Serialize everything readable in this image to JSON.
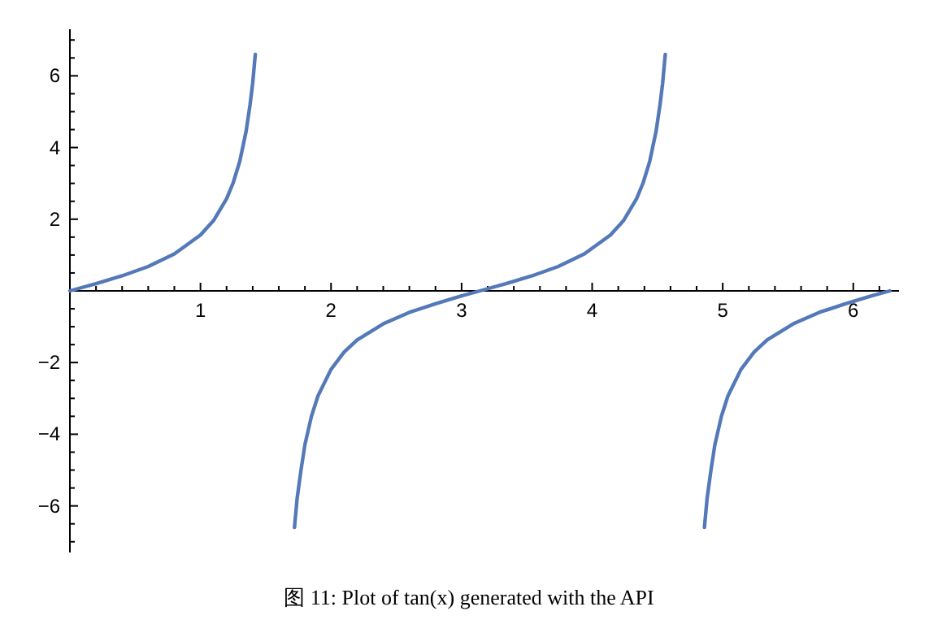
{
  "chart_data": {
    "type": "line",
    "annotations": [
      "图 11: Plot of tan(x) generated with the API"
    ],
    "series": [
      {
        "color": "#5479b8",
        "x": [
          0,
          0.2,
          0.4,
          0.6,
          0.8,
          1.0,
          1.1,
          1.2,
          1.25,
          1.3,
          1.35,
          1.38,
          1.4,
          1.42
        ],
        "values": [
          0,
          0.2,
          0.42,
          0.68,
          1.03,
          1.56,
          1.96,
          2.57,
          3.01,
          3.6,
          4.46,
          5.2,
          5.8,
          6.6
        ]
      },
      {
        "color": "#5479b8",
        "x": [
          1.72,
          1.74,
          1.77,
          1.8,
          1.85,
          1.9,
          2.0,
          2.1,
          2.2,
          2.4,
          2.6,
          2.8,
          3.0,
          3.14,
          3.34,
          3.54,
          3.74,
          3.94,
          4.14,
          4.24,
          4.34,
          4.39,
          4.44,
          4.49,
          4.52,
          4.54,
          4.56
        ],
        "values": [
          -6.6,
          -5.8,
          -5.0,
          -4.29,
          -3.5,
          -2.93,
          -2.19,
          -1.71,
          -1.37,
          -0.92,
          -0.6,
          -0.36,
          -0.14,
          0,
          0.2,
          0.42,
          0.68,
          1.03,
          1.56,
          1.96,
          2.57,
          3.01,
          3.6,
          4.46,
          5.2,
          5.8,
          6.6
        ]
      },
      {
        "color": "#5479b8",
        "x": [
          4.86,
          4.88,
          4.91,
          4.94,
          4.99,
          5.04,
          5.14,
          5.24,
          5.34,
          5.54,
          5.74,
          5.94,
          6.14,
          6.28
        ],
        "values": [
          -6.6,
          -5.8,
          -5.0,
          -4.29,
          -3.5,
          -2.93,
          -2.19,
          -1.71,
          -1.37,
          -0.92,
          -0.6,
          -0.36,
          -0.14,
          0
        ]
      }
    ],
    "xlim": [
      0,
      6.35
    ],
    "ylim": [
      -7.3,
      7.3
    ],
    "xticks": [
      {
        "value": 0.2,
        "label": null
      },
      {
        "value": 0.4,
        "label": null
      },
      {
        "value": 0.6,
        "label": null
      },
      {
        "value": 0.8,
        "label": null
      },
      1,
      {
        "value": 1.2,
        "label": null
      },
      {
        "value": 1.4,
        "label": null
      },
      {
        "value": 1.6,
        "label": null
      },
      {
        "value": 1.8,
        "label": null
      },
      2,
      {
        "value": 2.2,
        "label": null
      },
      {
        "value": 2.4,
        "label": null
      },
      {
        "value": 2.6,
        "label": null
      },
      {
        "value": 2.8,
        "label": null
      },
      3,
      {
        "value": 3.2,
        "label": null
      },
      {
        "value": 3.4,
        "label": null
      },
      {
        "value": 3.6,
        "label": null
      },
      {
        "value": 3.8,
        "label": null
      },
      4,
      {
        "value": 4.2,
        "label": null
      },
      {
        "value": 4.4,
        "label": null
      },
      {
        "value": 4.6,
        "label": null
      },
      {
        "value": 4.8,
        "label": null
      },
      5,
      {
        "value": 5.2,
        "label": null
      },
      {
        "value": 5.4,
        "label": null
      },
      {
        "value": 5.6,
        "label": null
      },
      {
        "value": 5.8,
        "label": null
      },
      6,
      {
        "value": 6.2,
        "label": null
      }
    ],
    "yticks": [
      {
        "value": -7,
        "label": null
      },
      {
        "value": -6.5,
        "label": null
      },
      -6,
      {
        "value": -5.5,
        "label": null
      },
      {
        "value": -5,
        "label": null
      },
      {
        "value": -4.5,
        "label": null
      },
      -4,
      {
        "value": -3.5,
        "label": null
      },
      {
        "value": -3,
        "label": null
      },
      {
        "value": -2.5,
        "label": null
      },
      -2,
      {
        "value": -1.5,
        "label": null
      },
      {
        "value": -1,
        "label": null
      },
      {
        "value": -0.5,
        "label": null
      },
      {
        "value": 0.5,
        "label": null
      },
      {
        "value": 1,
        "label": null
      },
      {
        "value": 1.5,
        "label": null
      },
      2,
      {
        "value": 2.5,
        "label": null
      },
      {
        "value": 3,
        "label": null
      },
      {
        "value": 3.5,
        "label": null
      },
      4,
      {
        "value": 4.5,
        "label": null
      },
      {
        "value": 5,
        "label": null
      },
      {
        "value": 5.5,
        "label": null
      },
      6,
      {
        "value": 6.5,
        "label": null
      },
      {
        "value": 7,
        "label": null
      }
    ],
    "grid": false,
    "marker": "none",
    "line_style": "solid"
  }
}
